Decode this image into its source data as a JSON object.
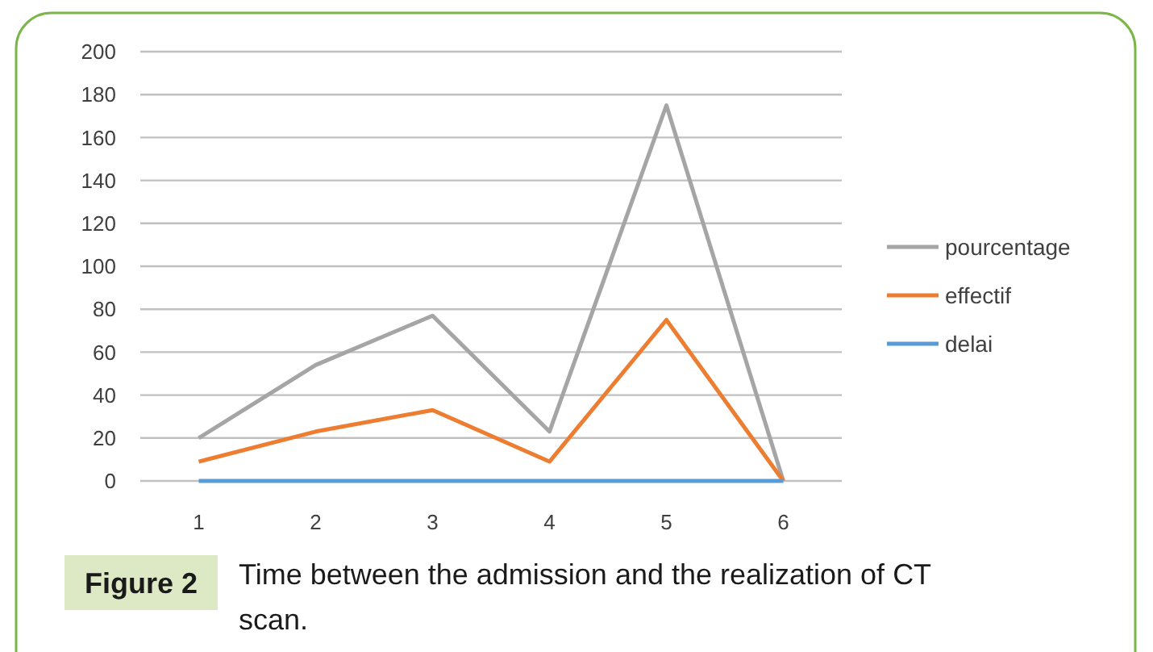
{
  "chart_data": {
    "type": "line",
    "title": "Time between the admission and the realization of CT scan.",
    "annotations": [
      "Figure 2"
    ],
    "categories": [
      "1",
      "2",
      "3",
      "4",
      "5",
      "6"
    ],
    "series": [
      {
        "name": "pourcentage",
        "color": "#a5a5a5",
        "values": [
          20,
          54,
          77,
          23,
          175,
          0
        ]
      },
      {
        "name": "effectif",
        "color": "#ed7d31",
        "values": [
          9,
          23,
          33,
          9,
          75,
          0
        ]
      },
      {
        "name": "delai",
        "color": "#5b9bd5",
        "values": [
          0,
          0,
          0,
          0,
          0,
          0
        ]
      }
    ],
    "ylim": [
      0,
      200
    ],
    "yticks": [
      0,
      20,
      40,
      60,
      80,
      100,
      120,
      140,
      160,
      180,
      200
    ],
    "grid": "y",
    "legend": "right",
    "marker": "none",
    "line_style": "solid"
  }
}
